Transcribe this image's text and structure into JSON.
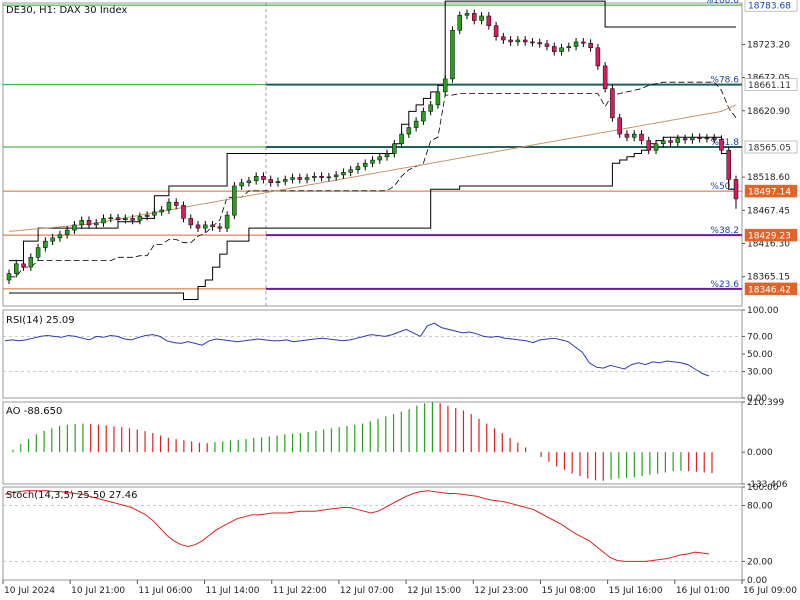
{
  "chart_data": {
    "type": "candlestick",
    "title": "DE30, H1:  DAX 30 Index",
    "price_axis": {
      "ticks": [
        "18723.20",
        "18672.05",
        "18620.90",
        "18518.60",
        "18467.45",
        "18416.30",
        "18365.15"
      ],
      "range": [
        18320,
        18787
      ]
    },
    "price_labels": [
      {
        "text": "18783.68",
        "value": 18783.68,
        "bg": "#ffffff",
        "fg": "#1a3fb0"
      },
      {
        "text": "18661.11",
        "value": 18661.11,
        "bg": "#ffffff",
        "fg": "#333333"
      },
      {
        "text": "18565.05",
        "value": 18565.05,
        "bg": "#ffffff",
        "fg": "#333333"
      },
      {
        "text": "18497.14",
        "value": 18497.14,
        "bg": "#e0642a",
        "fg": "#ffffff"
      },
      {
        "text": "18429.23",
        "value": 18429.23,
        "bg": "#e0642a",
        "fg": "#ffffff"
      },
      {
        "text": "18346.42",
        "value": 18346.42,
        "bg": "#e0642a",
        "fg": "#ffffff"
      }
    ],
    "fibonacci": [
      {
        "label": "%100.0",
        "value": 18783.68,
        "color": "#22aa22",
        "label_color": "#1a3fb0"
      },
      {
        "label": "%78.6",
        "value": 18661.11,
        "color": "#22aa22",
        "label_color": "#1a3fb0"
      },
      {
        "label": "%61.8",
        "value": 18565.05,
        "color": "#22aa22",
        "label_color": "#1a3fb0"
      },
      {
        "label": "%50.0",
        "value": 18497.14,
        "color": "#e0642a",
        "label_color": "#1a3fb0"
      },
      {
        "label": "%38.2",
        "value": 18429.23,
        "color": "#e0642a",
        "label_color": "#1a3fb0"
      },
      {
        "label": "%23.6",
        "value": 18346.42,
        "color": "#e0642a",
        "label_color": "#1a3fb0"
      }
    ],
    "support_resistance": [
      {
        "value": 18661.11,
        "color": "#1f5e5e"
      },
      {
        "value": 18565.05,
        "color": "#1f5e5e"
      },
      {
        "value": 18429.23,
        "color": "#6a1b9a"
      },
      {
        "value": 18346.42,
        "color": "#6a1b9a"
      }
    ],
    "candles_close": [
      18370,
      18385,
      18380,
      18395,
      18410,
      18420,
      18425,
      18430,
      18437,
      18445,
      18452,
      18445,
      18448,
      18455,
      18456,
      18453,
      18455,
      18452,
      18458,
      18460,
      18465,
      18468,
      18480,
      18475,
      18455,
      18445,
      18440,
      18445,
      18442,
      18440,
      18460,
      18505,
      18510,
      18513,
      18520,
      18515,
      18510,
      18512,
      18515,
      18518,
      18515,
      18518,
      18520,
      18518,
      18519,
      18522,
      18526,
      18530,
      18535,
      18540,
      18545,
      18550,
      18555,
      18570,
      18585,
      18595,
      18605,
      18620,
      18630,
      18650,
      18670,
      18745,
      18768,
      18771,
      18760,
      18767,
      18752,
      18735,
      18730,
      18727,
      18730,
      18727,
      18726,
      18724,
      18720,
      18712,
      18718,
      18720,
      18727,
      18725,
      18718,
      18690,
      18655,
      18610,
      18585,
      18580,
      18585,
      18575,
      18560,
      18570,
      18575,
      18572,
      18578,
      18576,
      18580,
      18578,
      18579,
      18577,
      18560,
      18515,
      18485
    ],
    "trend_channel_upper": [
      18390,
      18390,
      18420,
      18420,
      18440,
      18440,
      18440,
      18440,
      18440,
      18440,
      18440,
      18440,
      18440,
      18440,
      18440,
      18450,
      18450,
      18450,
      18455,
      18455,
      18490,
      18490,
      18505,
      18505,
      18505,
      18505,
      18505,
      18505,
      18505,
      18505,
      18555,
      18555,
      18555,
      18555,
      18555,
      18555,
      18555,
      18555,
      18555,
      18555,
      18555,
      18555,
      18555,
      18555,
      18555,
      18555,
      18555,
      18555,
      18555,
      18555,
      18555,
      18555,
      18555,
      18570,
      18600,
      18620,
      18630,
      18640,
      18650,
      18660,
      18790,
      18790,
      18790,
      18790,
      18790,
      18790,
      18790,
      18790,
      18790,
      18790,
      18790,
      18790,
      18790,
      18790,
      18790,
      18790,
      18790,
      18790,
      18790,
      18790,
      18790,
      18790,
      18750,
      18750,
      18750,
      18750,
      18750,
      18750,
      18750,
      18750,
      18750,
      18750,
      18750,
      18750,
      18750,
      18750,
      18750,
      18750,
      18750,
      18750,
      18750
    ],
    "trend_channel_lower": [
      18340,
      18340,
      18340,
      18340,
      18340,
      18340,
      18340,
      18340,
      18340,
      18340,
      18340,
      18340,
      18340,
      18340,
      18340,
      18340,
      18340,
      18340,
      18340,
      18340,
      18340,
      18340,
      18340,
      18340,
      18330,
      18330,
      18350,
      18360,
      18380,
      18400,
      18420,
      18420,
      18420,
      18440,
      18440,
      18440,
      18440,
      18440,
      18440,
      18440,
      18440,
      18440,
      18440,
      18440,
      18440,
      18440,
      18440,
      18440,
      18440,
      18440,
      18440,
      18440,
      18440,
      18440,
      18440,
      18440,
      18440,
      18440,
      18500,
      18500,
      18500,
      18500,
      18505,
      18505,
      18505,
      18505,
      18505,
      18505,
      18505,
      18505,
      18505,
      18505,
      18505,
      18505,
      18505,
      18505,
      18505,
      18505,
      18505,
      18505,
      18505,
      18505,
      18505,
      18540,
      18545,
      18550,
      18555,
      18560,
      18570,
      18575,
      18580,
      18580,
      18580,
      18580,
      18580,
      18580,
      18580,
      18580,
      18555,
      18500,
      18470
    ],
    "moving_average": [
      18435,
      18436,
      18437,
      18438,
      18439,
      18440,
      18441,
      18442,
      18443,
      18444,
      18445,
      18446,
      18448,
      18450,
      18452,
      18454,
      18456,
      18458,
      18460,
      18462,
      18464,
      18466,
      18468,
      18470,
      18472,
      18474,
      18476,
      18478,
      18480,
      18482,
      18484,
      18486,
      18488,
      18490,
      18492,
      18494,
      18496,
      18498,
      18500,
      18502,
      18504,
      18506,
      18508,
      18510,
      18512,
      18514,
      18516,
      18518,
      18520,
      18522,
      18524,
      18526,
      18528,
      18530,
      18532,
      18534,
      18536,
      18538,
      18540,
      18542,
      18544,
      18546,
      18548,
      18550,
      18552,
      18554,
      18556,
      18558,
      18560,
      18562,
      18564,
      18566,
      18568,
      18570,
      18572,
      18574,
      18576,
      18578,
      18580,
      18582,
      18584,
      18586,
      18588,
      18590,
      18592,
      18594,
      18596,
      18598,
      18600,
      18602,
      18604,
      18606,
      18608,
      18610,
      18612,
      18614,
      18616,
      18618,
      18620,
      18625,
      18630
    ],
    "rsi": {
      "label": "RSI(14) 25.09",
      "ticks": [
        "100.00",
        "70.00",
        "50.00",
        "30.00",
        "0.00"
      ],
      "levels": [
        70,
        30
      ],
      "values": [
        65,
        66,
        65,
        66,
        68,
        70,
        71,
        70,
        69,
        71,
        70,
        68,
        66,
        70,
        69,
        71,
        70,
        67,
        66,
        69,
        71,
        72,
        70,
        65,
        63,
        62,
        64,
        62,
        60,
        65,
        67,
        66,
        65,
        64,
        65,
        66,
        67,
        66,
        65,
        65,
        66,
        64,
        65,
        66,
        67,
        68,
        67,
        66,
        65,
        66,
        68,
        70,
        72,
        71,
        70,
        72,
        75,
        78,
        74,
        70,
        82,
        85,
        80,
        78,
        76,
        74,
        75,
        73,
        70,
        69,
        70,
        68,
        67,
        66,
        65,
        63,
        66,
        67,
        68,
        66,
        64,
        58,
        52,
        40,
        35,
        34,
        37,
        35,
        33,
        38,
        40,
        38,
        41,
        40,
        42,
        41,
        40,
        38,
        33,
        28,
        25
      ]
    },
    "ao": {
      "label": "AO -88.650",
      "ticks": [
        "210.399",
        "0.000",
        "-133.406"
      ],
      "range": [
        -133.406,
        210.399
      ],
      "values": [
        10,
        35,
        55,
        75,
        90,
        100,
        110,
        115,
        118,
        120,
        118,
        115,
        112,
        108,
        105,
        100,
        95,
        88,
        80,
        70,
        60,
        55,
        50,
        45,
        40,
        38,
        42,
        45,
        50,
        52,
        55,
        60,
        62,
        66,
        70,
        75,
        78,
        80,
        85,
        90,
        95,
        100,
        105,
        110,
        115,
        120,
        130,
        140,
        150,
        160,
        170,
        180,
        195,
        205,
        210,
        205,
        195,
        185,
        175,
        160,
        140,
        120,
        100,
        80,
        60,
        40,
        20,
        0,
        -20,
        -40,
        -60,
        -75,
        -90,
        -100,
        -110,
        -118,
        -120,
        -115,
        -110,
        -108,
        -105,
        -100,
        -95,
        -90,
        -85,
        -80,
        -78,
        -80,
        -82,
        -85,
        -88
      ]
    },
    "stoch": {
      "label": "Stoch(14,3,5) 25.50 27.46",
      "ticks": [
        "100.00",
        "80.00",
        "20.00",
        "0.00"
      ],
      "levels": [
        80,
        20
      ],
      "values": [
        92,
        94,
        95,
        96,
        96,
        96,
        96,
        95,
        95,
        94,
        93,
        92,
        90,
        88,
        86,
        84,
        82,
        80,
        78,
        74,
        70,
        64,
        56,
        48,
        42,
        38,
        36,
        38,
        42,
        48,
        54,
        58,
        62,
        66,
        68,
        70,
        70,
        71,
        72,
        72,
        72,
        73,
        74,
        74,
        74,
        75,
        76,
        77,
        78,
        78,
        76,
        74,
        72,
        74,
        78,
        82,
        86,
        90,
        93,
        95,
        96,
        95,
        94,
        93,
        93,
        92,
        91,
        90,
        88,
        86,
        85,
        84,
        82,
        80,
        78,
        76,
        72,
        68,
        64,
        60,
        55,
        50,
        46,
        42,
        36,
        30,
        24,
        21,
        20,
        20,
        20,
        20,
        21,
        22,
        23,
        25,
        27,
        28,
        30,
        29,
        28
      ]
    },
    "time_axis": [
      "10 Jul 2024",
      "10 Jul 21:00",
      "11 Jul 06:00",
      "11 Jul 14:00",
      "11 Jul 22:00",
      "12 Jul 07:00",
      "12 Jul 15:00",
      "12 Jul 23:00",
      "15 Jul 08:00",
      "15 Jul 16:00",
      "16 Jul 01:00",
      "16 Jul 09:00"
    ]
  }
}
